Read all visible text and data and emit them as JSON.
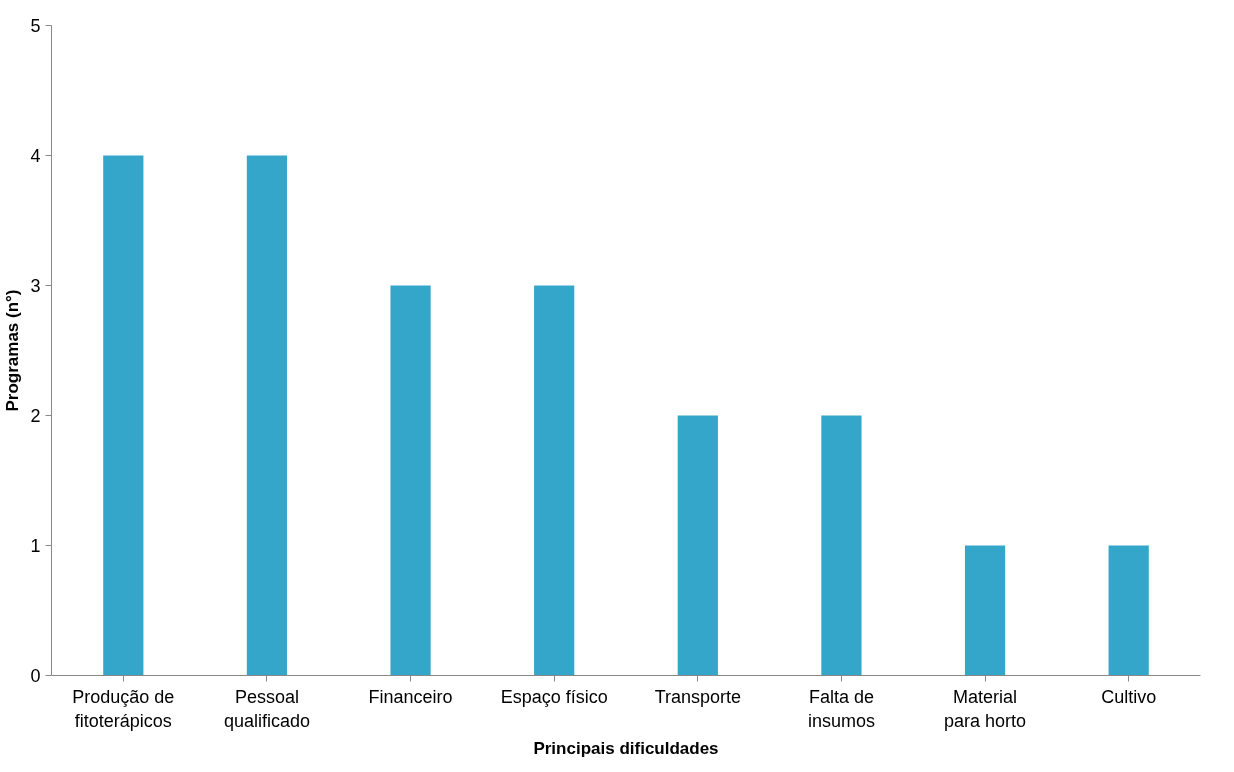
{
  "chart_data": {
    "type": "bar",
    "xlabel": "Principais dificuldades",
    "ylabel": "Programas (n°)",
    "categories": [
      "Produção de fitoterápicos",
      "Pessoal qualificado",
      "Financeiro",
      "Espaço físico",
      "Transporte",
      "Falta de insumos",
      "Material para horto",
      "Cultivo"
    ],
    "values": [
      4,
      4,
      3,
      3,
      2,
      2,
      1,
      1
    ],
    "color": "#33a6c9",
    "ylim": [
      0,
      5
    ],
    "yticks": [
      0,
      1,
      2,
      3,
      4,
      5
    ],
    "grid": false
  }
}
